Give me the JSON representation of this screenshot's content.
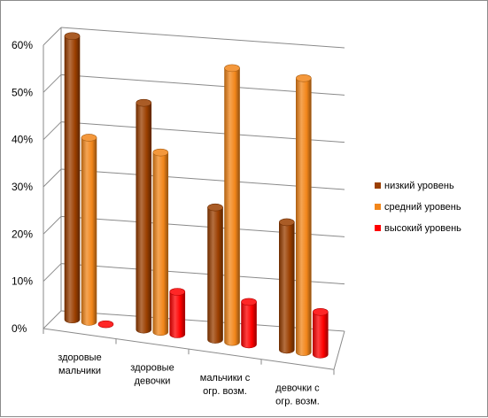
{
  "chart_data": {
    "type": "bar",
    "categories": [
      [
        "здоровые",
        "мальчики"
      ],
      [
        "здоровые",
        "девочки"
      ],
      [
        "мальчики с",
        "огр. возм."
      ],
      [
        "девочки с",
        "огр. возм."
      ]
    ],
    "series": [
      {
        "name": "низкий уровень",
        "values": [
          60,
          48,
          28,
          27
        ],
        "color": "#9b3f00"
      },
      {
        "name": "средний уровень",
        "values": [
          39,
          38,
          58,
          58
        ],
        "color": "#f2861a"
      },
      {
        "name": "высокий уровень",
        "values": [
          0,
          9,
          9,
          9
        ],
        "color": "#ff0000"
      }
    ],
    "yticks": [
      "0%",
      "10%",
      "20%",
      "30%",
      "40%",
      "50%",
      "60%"
    ],
    "ylim": [
      0,
      60
    ],
    "grid": true,
    "legend_position": "right"
  }
}
